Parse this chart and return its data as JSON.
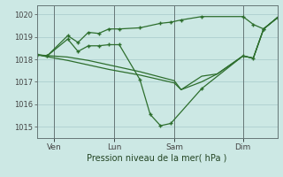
{
  "bg_color": "#cce8e4",
  "grid_color": "#aacccc",
  "line_color": "#2d6e2d",
  "xlabel": "Pression niveau de la mer( hPa )",
  "ylim": [
    1014.5,
    1020.4
  ],
  "ytick_vals": [
    1015,
    1016,
    1017,
    1018,
    1019,
    1020
  ],
  "xlim": [
    0,
    280
  ],
  "xtick_pos": [
    20,
    90,
    160,
    240
  ],
  "xtick_labels": [
    "Ven",
    "Lun",
    "Sam",
    "Dim"
  ],
  "series": [
    {
      "x": [
        0,
        12,
        36,
        48,
        60,
        72,
        84,
        96,
        120,
        144,
        156,
        168,
        192,
        240,
        252,
        264,
        280
      ],
      "y": [
        1018.2,
        1018.15,
        1019.05,
        1018.75,
        1019.2,
        1019.15,
        1019.35,
        1019.35,
        1019.4,
        1019.6,
        1019.65,
        1019.75,
        1019.9,
        1019.9,
        1019.55,
        1019.35,
        1019.85
      ],
      "marker": true
    },
    {
      "x": [
        0,
        12,
        36,
        48,
        60,
        72,
        84,
        96,
        120,
        132,
        144,
        156,
        192,
        240,
        252,
        264,
        280
      ],
      "y": [
        1018.2,
        1018.15,
        1018.9,
        1018.35,
        1018.6,
        1018.6,
        1018.65,
        1018.65,
        1017.1,
        1015.55,
        1015.05,
        1015.15,
        1016.7,
        1018.15,
        1018.05,
        1019.35,
        1019.85
      ],
      "marker": true
    },
    {
      "x": [
        0,
        36,
        60,
        84,
        120,
        160,
        168,
        192,
        210,
        240,
        252,
        264,
        280
      ],
      "y": [
        1018.2,
        1018.1,
        1017.95,
        1017.75,
        1017.45,
        1017.05,
        1016.65,
        1017.25,
        1017.35,
        1018.15,
        1018.05,
        1019.35,
        1019.85
      ],
      "marker": false
    },
    {
      "x": [
        0,
        36,
        60,
        84,
        120,
        160,
        168,
        192,
        210,
        240,
        252,
        264,
        280
      ],
      "y": [
        1018.2,
        1017.95,
        1017.75,
        1017.55,
        1017.3,
        1016.95,
        1016.65,
        1017.0,
        1017.35,
        1018.15,
        1018.05,
        1019.35,
        1019.85
      ],
      "marker": false
    }
  ]
}
